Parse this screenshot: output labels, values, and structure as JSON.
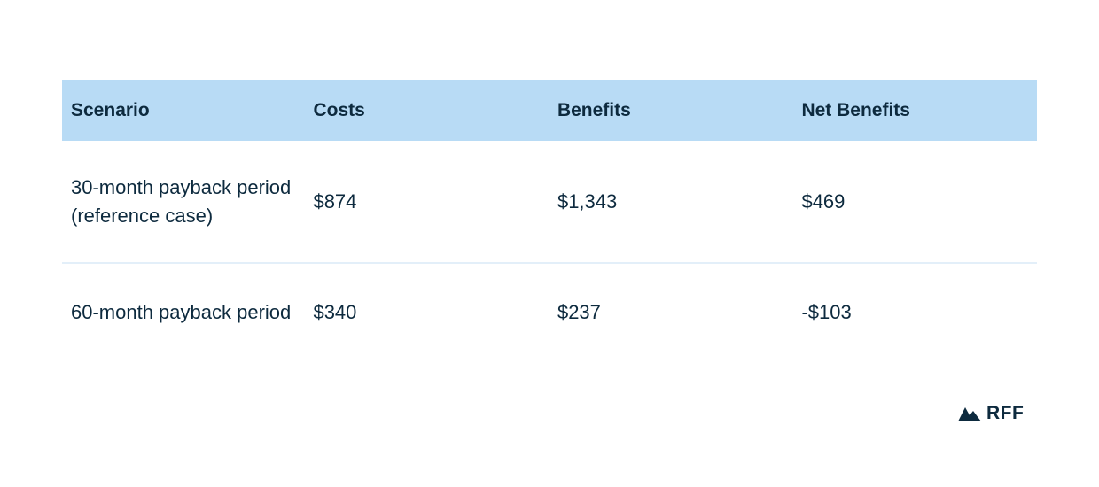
{
  "table": {
    "headers": [
      "Scenario",
      "Costs",
      "Benefits",
      "Net Benefits"
    ],
    "rows": [
      [
        "30-month payback period (reference case)",
        "$874",
        "$1,343",
        "$469"
      ],
      [
        "60-month payback period",
        "$340",
        "$237",
        "-$103"
      ]
    ]
  },
  "logo": {
    "text": "RFF",
    "icon": "mountain-icon"
  },
  "colors": {
    "header_bg": "#b8dbf5",
    "text": "#0d2a3e",
    "divider": "#e3eff9"
  }
}
